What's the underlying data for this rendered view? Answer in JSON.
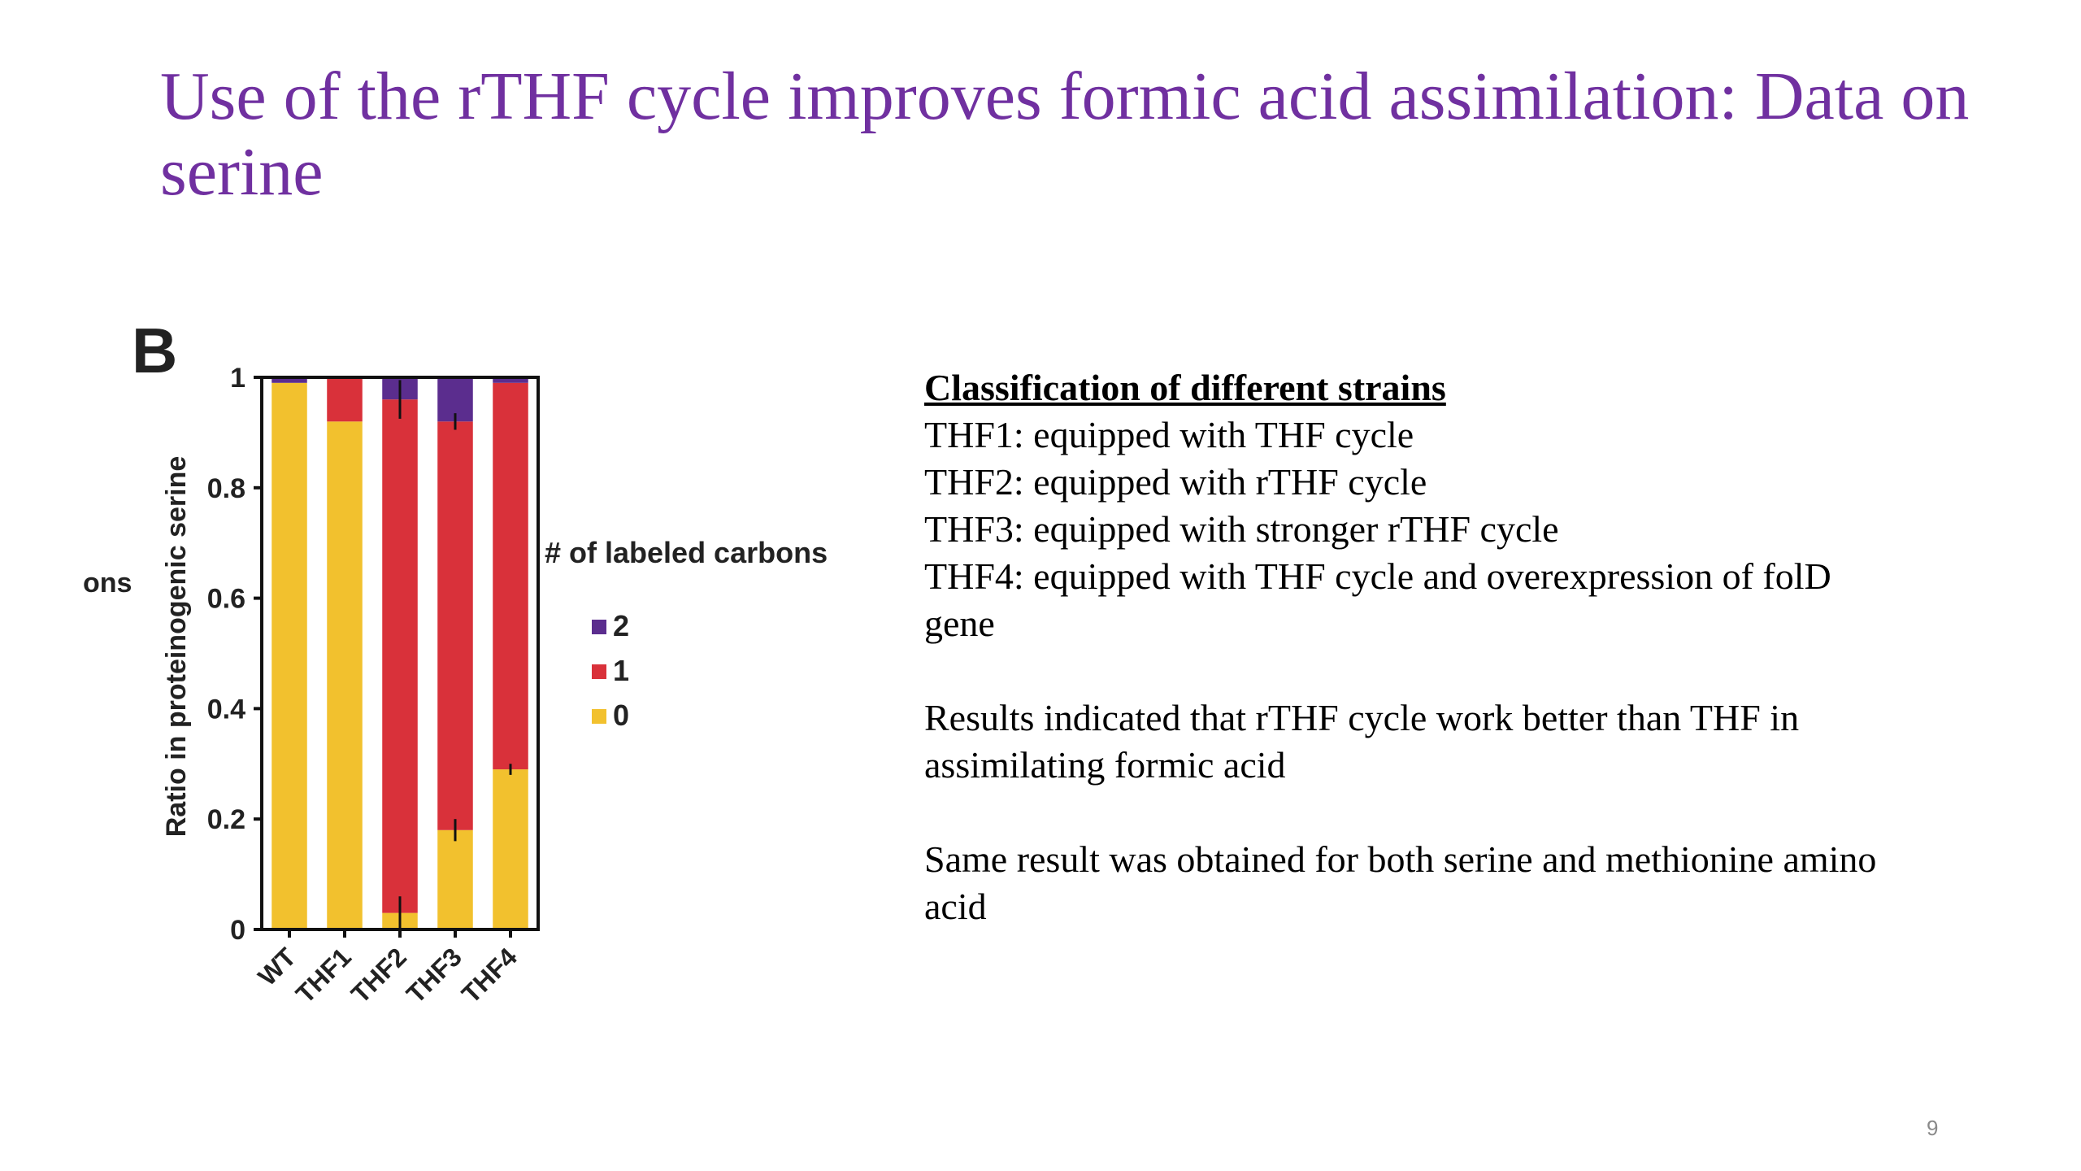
{
  "slide": {
    "title": "Use of the rTHF cycle improves formic acid assimilation: Data on serine",
    "page_number": "9"
  },
  "colors": {
    "title": "#7030a0",
    "label_0": "#f2c12e",
    "label_1": "#d9313a",
    "label_2": "#5b2d8e"
  },
  "classification": {
    "heading": "Classification of different strains",
    "lines": [
      "THF1: equipped with THF cycle",
      "THF2: equipped with rTHF cycle",
      "THF3: equipped with stronger rTHF cycle",
      "THF4: equipped with THF cycle and overexpression of folD gene"
    ],
    "results": "Results indicated that rTHF cycle work better than THF in assimilating formic acid",
    "same_result": "Same result was obtained for both serine and methionine amino acid"
  },
  "chart_data": {
    "type": "bar",
    "stacked": true,
    "panel_label": "B",
    "clipped_left_text": "ons",
    "ylabel": "Ratio in proteinogenic serine",
    "xlabel": "",
    "ylim": [
      0,
      1
    ],
    "yticks": [
      "0",
      "0.2",
      "0.4",
      "0.6",
      "0.8",
      "1"
    ],
    "categories": [
      "WT",
      "THF1",
      "THF2",
      "THF3",
      "THF4"
    ],
    "legend_title": "# of labeled carbons",
    "legend_position": "right",
    "series": [
      {
        "name": "0",
        "values": [
          0.99,
          0.92,
          0.03,
          0.18,
          0.29
        ]
      },
      {
        "name": "1",
        "values": [
          0.0,
          0.08,
          0.93,
          0.74,
          0.7
        ]
      },
      {
        "name": "2",
        "values": [
          0.01,
          0.0,
          0.04,
          0.08,
          0.01
        ]
      }
    ],
    "error_tops": [
      1.0,
      0.92,
      0.96,
      0.92,
      0.99
    ],
    "error_bars": [
      0.0,
      0.0,
      0.035,
      0.015,
      0.0
    ],
    "error_lows": [
      0.99,
      0.92,
      0.03,
      0.18,
      0.29
    ],
    "error_bars_low": [
      0.0,
      0.0,
      0.03,
      0.02,
      0.01
    ]
  }
}
